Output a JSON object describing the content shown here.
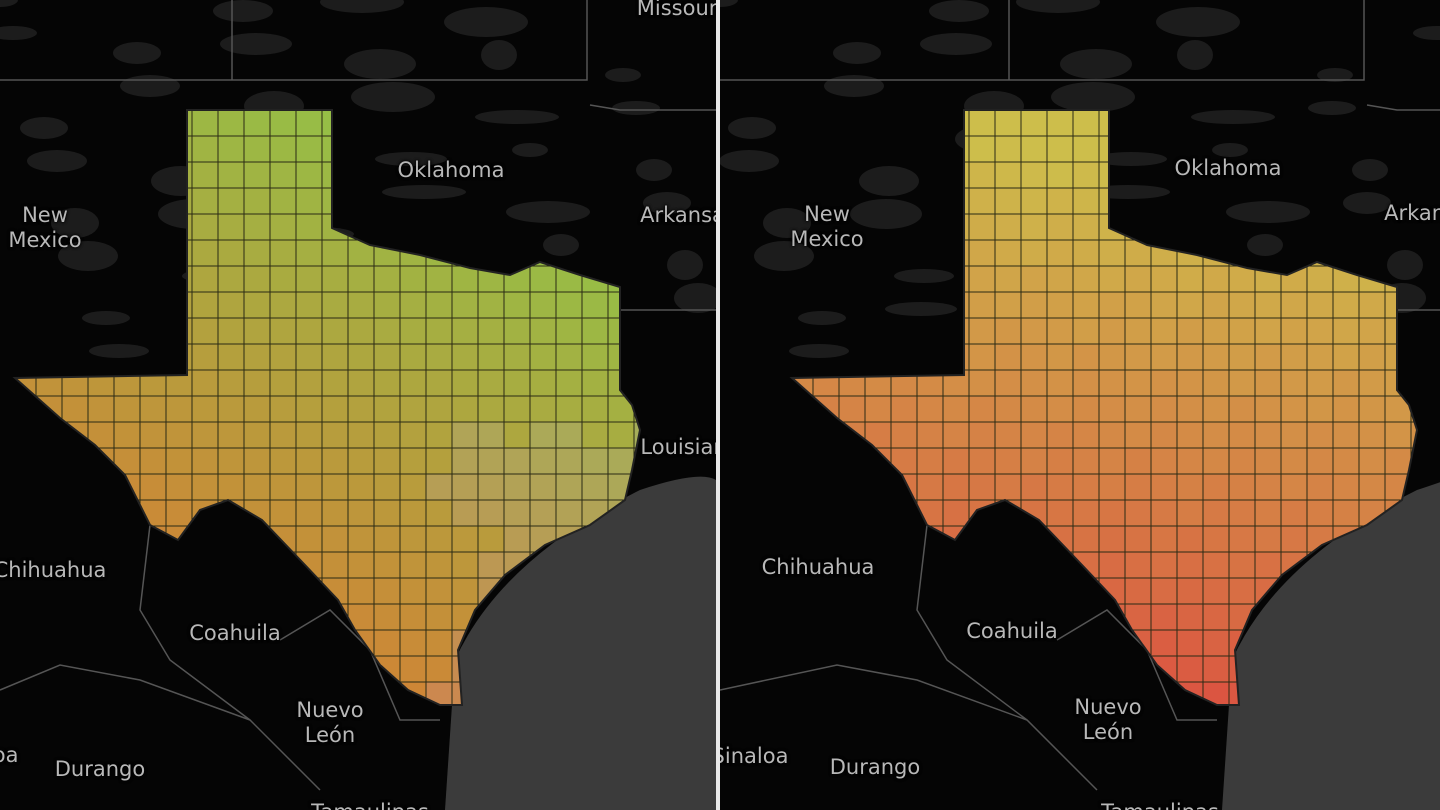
{
  "panels": [
    {
      "labels": [
        "Missouri",
        "Oklahoma",
        "New Mexico",
        "Arkansas",
        "Louisiana",
        "Chihuahua",
        "Coahuila",
        "Nuevo León",
        "Durango",
        "Tamaulipas",
        "Sinaloa"
      ]
    },
    {
      "labels": [
        "Oklahoma",
        "New Mexico",
        "Arkansas",
        "Chihuahua",
        "Coahuila",
        "Nuevo León",
        "Durango",
        "Sinaloa",
        "Tamaulipas"
      ]
    }
  ]
}
